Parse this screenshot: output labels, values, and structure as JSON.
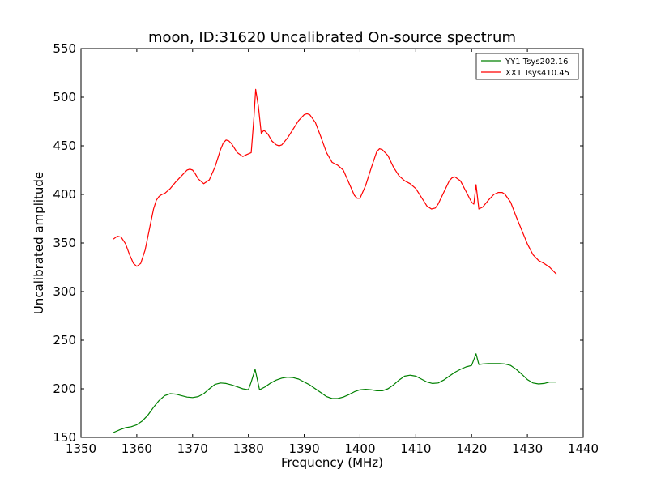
{
  "chart_data": {
    "type": "line",
    "title": "moon, ID:31620 Uncalibrated On-source spectrum",
    "xlabel": "Frequency (MHz)",
    "ylabel": "Uncalibrated amplitude",
    "xlim": [
      1350,
      1440
    ],
    "ylim": [
      150,
      550
    ],
    "xticks": [
      1350,
      1360,
      1370,
      1380,
      1390,
      1400,
      1410,
      1420,
      1430,
      1440
    ],
    "yticks": [
      150,
      200,
      250,
      300,
      350,
      400,
      450,
      500,
      550
    ],
    "grid": false,
    "legend_position": "top-right",
    "series": [
      {
        "name": "YY1 Tsys202.16",
        "color": "#008000",
        "x": [
          1355.8,
          1357,
          1358,
          1359,
          1360,
          1361,
          1362,
          1363,
          1364,
          1365,
          1366,
          1367,
          1368,
          1369,
          1370,
          1371,
          1372,
          1373,
          1374,
          1375,
          1376,
          1377,
          1378,
          1379,
          1380,
          1380.5,
          1381.2,
          1382,
          1383,
          1384,
          1385,
          1386,
          1387,
          1388,
          1389,
          1390,
          1391,
          1392,
          1393,
          1394,
          1395,
          1396,
          1397,
          1398,
          1399,
          1400,
          1401,
          1402,
          1403,
          1404,
          1405,
          1406,
          1407,
          1408,
          1409,
          1410,
          1411,
          1412,
          1413,
          1414,
          1415,
          1416,
          1417,
          1418,
          1419,
          1420,
          1420.8,
          1421.3,
          1422,
          1423,
          1424,
          1425,
          1426,
          1427,
          1428,
          1429,
          1430,
          1431,
          1432,
          1433,
          1434,
          1435.2
        ],
        "values": [
          155,
          158,
          160,
          161,
          163,
          167,
          173,
          181,
          188,
          193,
          195,
          194.5,
          193,
          191.5,
          191,
          192,
          195,
          200,
          204.5,
          206,
          205.5,
          204,
          202,
          200,
          199,
          207,
          220,
          199,
          202,
          206,
          209,
          211,
          212,
          211.5,
          210,
          207,
          204,
          200,
          196,
          192,
          190,
          190,
          191.5,
          194,
          197,
          199,
          199.5,
          199,
          198,
          198,
          200,
          204,
          209,
          213,
          214,
          213,
          210,
          207,
          205.5,
          206,
          209,
          213,
          217,
          220,
          222.5,
          224,
          236,
          225,
          225.5,
          226,
          226,
          226,
          225.5,
          224,
          220,
          215,
          209.5,
          206,
          205,
          205.5,
          207,
          207
        ]
      },
      {
        "name": "XX1 Tsys410.45",
        "color": "#ff0000",
        "x": [
          1355.8,
          1356.5,
          1357.2,
          1358,
          1358.7,
          1359.4,
          1360,
          1360.7,
          1361.5,
          1362,
          1362.5,
          1363,
          1363.5,
          1364,
          1364.5,
          1365,
          1366,
          1367,
          1368,
          1369,
          1369.5,
          1370,
          1370.5,
          1371,
          1372,
          1373,
          1374,
          1375,
          1375.5,
          1376,
          1376.5,
          1377,
          1378,
          1379,
          1379.7,
          1380.5,
          1381,
          1381.3,
          1381.8,
          1382.3,
          1382.8,
          1383.5,
          1384.2,
          1385,
          1385.5,
          1386,
          1387,
          1388,
          1389,
          1390,
          1390.5,
          1391,
          1392,
          1393,
          1394,
          1395,
          1396,
          1397,
          1398,
          1399,
          1399.5,
          1400,
          1401,
          1402,
          1403,
          1403.5,
          1404,
          1405,
          1406,
          1407,
          1408,
          1409,
          1410,
          1411,
          1412,
          1412.8,
          1413.5,
          1414,
          1415,
          1416,
          1416.5,
          1417,
          1418,
          1419,
          1420,
          1420.4,
          1420.8,
          1421.3,
          1422,
          1423,
          1424,
          1424.8,
          1425.5,
          1426,
          1427,
          1428,
          1429,
          1430,
          1431,
          1432,
          1433,
          1434,
          1435.2
        ],
        "values": [
          354,
          357,
          356,
          349,
          338,
          329,
          326,
          329,
          343,
          357,
          371,
          385,
          394,
          398,
          400,
          401,
          406,
          413,
          419,
          425,
          426,
          425,
          421,
          416,
          411,
          415,
          428,
          446,
          453,
          456,
          455,
          452,
          443,
          439,
          441,
          443,
          480,
          508,
          490,
          463,
          466,
          462,
          455,
          451,
          450,
          451,
          458,
          467,
          476,
          482,
          483,
          482,
          474,
          459,
          443,
          433,
          430,
          425,
          412,
          399,
          396,
          396,
          409,
          427,
          444,
          447,
          446,
          440,
          428,
          419,
          414,
          411,
          406,
          397,
          388,
          385,
          386,
          390,
          402,
          414,
          417,
          418,
          414,
          403,
          392,
          390,
          410,
          385,
          387,
          394,
          400,
          402,
          402,
          400,
          392,
          377,
          363,
          349,
          338,
          332,
          329,
          325,
          318
        ]
      }
    ]
  }
}
